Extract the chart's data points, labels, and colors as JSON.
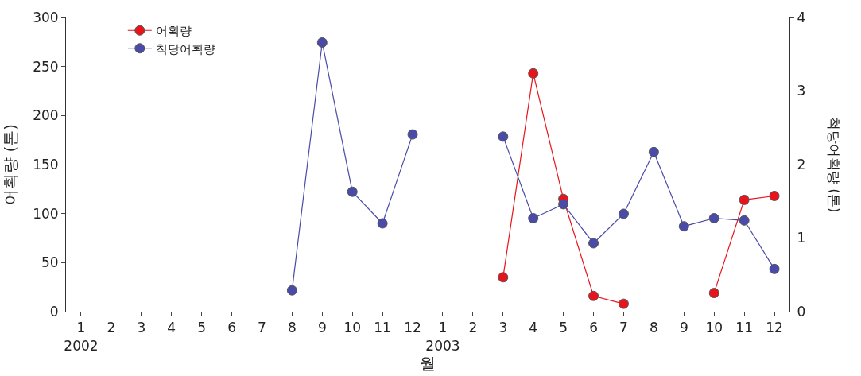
{
  "chart_data": {
    "type": "line",
    "xlabel": "월",
    "ylabel": "어획량 (톤)",
    "y2label": "척당어획량 (톤)",
    "categories": [
      "1\n2002",
      "2",
      "3",
      "4",
      "5",
      "6",
      "7",
      "8",
      "9",
      "10",
      "11",
      "12",
      "1\n2003",
      "2",
      "3",
      "4",
      "5",
      "6",
      "7",
      "8",
      "9",
      "10",
      "11",
      "12"
    ],
    "series": [
      {
        "name": "어획량",
        "color": "#e8141c",
        "axis": "y",
        "values": [
          null,
          null,
          null,
          null,
          null,
          null,
          null,
          null,
          null,
          null,
          null,
          null,
          null,
          null,
          35,
          243,
          115,
          16,
          8,
          null,
          null,
          19,
          114,
          118
        ]
      },
      {
        "name": "척당어획량",
        "color": "#4a4aa8",
        "axis": "y2",
        "values": [
          null,
          null,
          null,
          null,
          null,
          null,
          null,
          0.29,
          3.66,
          1.63,
          1.2,
          2.41,
          null,
          null,
          2.38,
          1.27,
          1.46,
          0.93,
          1.33,
          2.17,
          1.16,
          1.27,
          1.24,
          0.58
        ]
      }
    ],
    "ylim": [
      0,
      300
    ],
    "yticks": [
      0,
      50,
      100,
      150,
      200,
      250,
      300
    ],
    "y2lim": [
      0,
      4
    ],
    "y2ticks": [
      0,
      1,
      2,
      3,
      4
    ],
    "legend": "top left",
    "marker": "circle",
    "line_style": "solid"
  }
}
